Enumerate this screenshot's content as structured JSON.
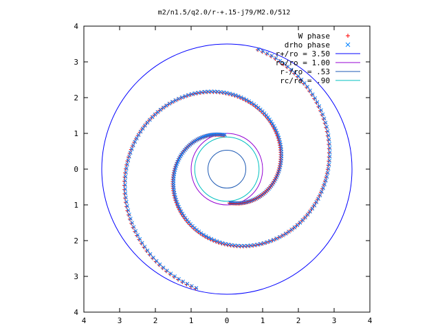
{
  "chart_data": {
    "type": "scatter",
    "title": "m2/n1.5/q2.0/r-+.15-j79/M2.0/512",
    "xlim": [
      -4,
      4
    ],
    "ylim": [
      -4,
      4
    ],
    "x_ticks": [
      -4,
      -3,
      -2,
      -1,
      0,
      1,
      2,
      3,
      4
    ],
    "y_ticks": [
      -4,
      -3,
      -2,
      -1,
      0,
      1,
      2,
      3,
      4
    ],
    "x_tick_labels": [
      "4",
      "3",
      "2",
      "1",
      "0",
      "1",
      "2",
      "3",
      "4"
    ],
    "y_tick_labels": [
      "4",
      "3",
      "2",
      "1",
      "0",
      "1",
      "2",
      "3",
      "4"
    ],
    "grid": false,
    "legend_position": "top-right",
    "circles": [
      {
        "label": "r+/ro = 3.50",
        "r": 3.5,
        "color": "#0000ff"
      },
      {
        "label": "ro/ro = 1.00",
        "r": 1.0,
        "color": "#9400d3"
      },
      {
        "label": "r-/ro = .53",
        "r": 0.53,
        "color": "#1e5ab4"
      },
      {
        "label": "rc/ro = .90",
        "r": 0.9,
        "color": "#00c0c0"
      }
    ],
    "series": [
      {
        "name": "W phase",
        "color": "#ff0000"
      },
      {
        "name": "drho phase",
        "color": "#0080ff"
      }
    ],
    "spiral_model": {
      "arms": [
        {
          "theta_start": 1.65,
          "theta_end": 7.6,
          "r_start": 0.95,
          "r_end": 3.45
        },
        {
          "theta_start": 4.79,
          "theta_end": 10.74,
          "r_start": 0.95,
          "r_end": 3.45
        }
      ]
    }
  }
}
